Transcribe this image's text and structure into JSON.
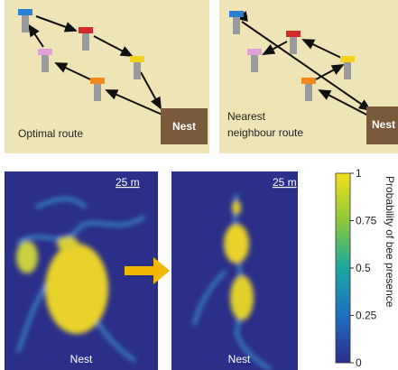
{
  "route_panels": [
    {
      "caption": [
        "Optimal route"
      ],
      "nest": "Nest"
    },
    {
      "caption": [
        "Nearest",
        "neighbour route"
      ],
      "nest": "Nest"
    }
  ],
  "heatmaps": [
    {
      "scale": "25 m",
      "nest": "Nest"
    },
    {
      "scale": "25 m",
      "nest": "Nest"
    }
  ],
  "colorbar": {
    "label": "Probability of bee presence",
    "lim": [
      0,
      1
    ],
    "ticks": [
      0,
      0.25,
      0.5,
      0.75,
      1
    ]
  }
}
